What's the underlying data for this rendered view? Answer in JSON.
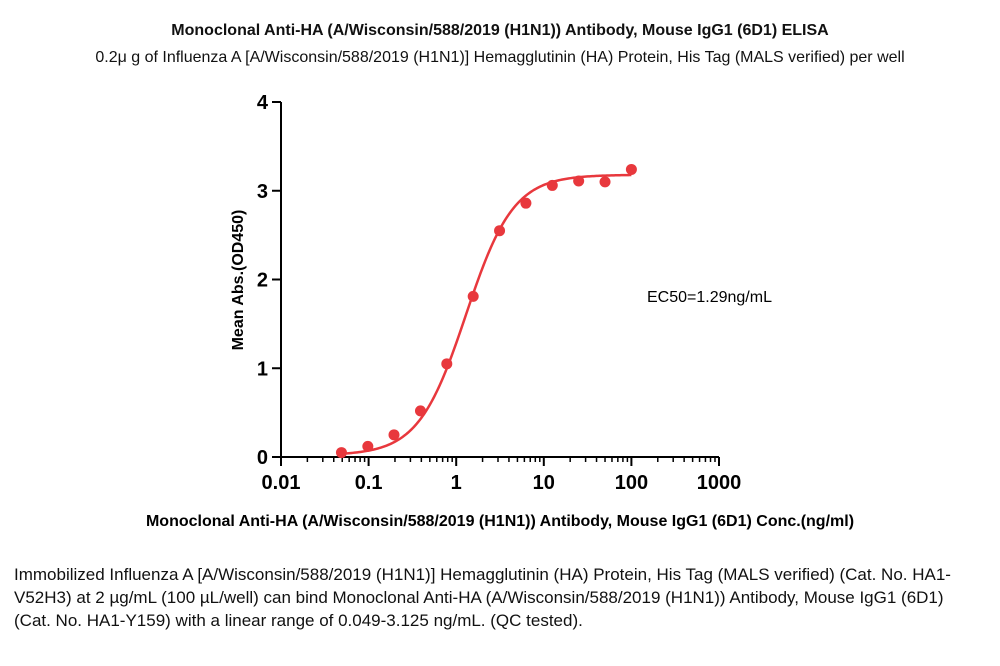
{
  "chart_data": {
    "type": "scatter",
    "title": "Monoclonal Anti-HA (A/Wisconsin/588/2019 (H1N1)) Antibody, Mouse IgG1 (6D1) ELISA",
    "subtitle": "0.2μ g of Influenza A [A/Wisconsin/588/2019 (H1N1)] Hemagglutinin (HA) Protein, His Tag (MALS verified) per well",
    "xlabel": "Monoclonal Anti-HA (A/Wisconsin/588/2019 (H1N1)) Antibody, Mouse IgG1 (6D1) Conc.(ng/ml)",
    "ylabel": "Mean Abs.(OD450)",
    "x_scale": "log",
    "xlim": [
      0.01,
      1000
    ],
    "ylim": [
      0,
      4
    ],
    "x_ticks": [
      "0.01",
      "0.1",
      "1",
      "10",
      "100",
      "1000"
    ],
    "y_ticks": [
      "0",
      "1",
      "2",
      "3",
      "4"
    ],
    "grid": false,
    "color": "#e8383d",
    "series": [
      {
        "x": [
          0.049,
          0.098,
          0.195,
          0.391,
          0.781,
          1.563,
          3.125,
          6.25,
          12.5,
          25,
          50,
          100
        ],
        "y": [
          0.05,
          0.12,
          0.25,
          0.52,
          1.05,
          1.81,
          2.55,
          2.86,
          3.06,
          3.11,
          3.1,
          3.24
        ]
      }
    ],
    "fit": {
      "bottom": 0.02,
      "top": 3.18,
      "ec50": 1.29,
      "hill": 1.6
    },
    "annotation": "EC50=1.29ng/mL"
  },
  "caption": "Immobilized Influenza A [A/Wisconsin/588/2019 (H1N1)] Hemagglutinin (HA) Protein, His Tag (MALS verified) (Cat. No. HA1-V52H3) at 2 µg/mL (100 µL/well) can bind Monoclonal Anti-HA (A/Wisconsin/588/2019 (H1N1)) Antibody, Mouse IgG1 (6D1) (Cat. No. HA1-Y159) with a linear range of 0.049-3.125 ng/mL. (QC tested)."
}
